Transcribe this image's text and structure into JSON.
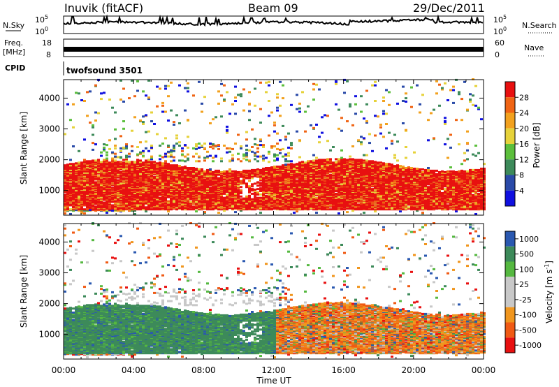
{
  "header": {
    "station": "Inuvik (fitACF)",
    "beam": "Beam 09",
    "date": "29/Dec/2011"
  },
  "strip_panels": {
    "nsky_label": "N.Sky",
    "nsky_ticks": [
      "10^5",
      "10^0"
    ],
    "nsearch_label": "N.Search",
    "nsearch_ticks": [
      "10^5",
      "10^0"
    ],
    "freq_label_line1": "Freq.",
    "freq_label_line2": "[MHz]",
    "freq_ticks": [
      "18",
      "8"
    ],
    "nave_label": "Nave",
    "nave_ticks": [
      "60",
      "0"
    ],
    "cpid_label": "CPID",
    "cpid_value": "twofsound 3501"
  },
  "colors": {
    "power": [
      "#1010e0",
      "#2a4aa8",
      "#3d8a5a",
      "#5cbf3c",
      "#e6d23a",
      "#f2a11e",
      "#f06414",
      "#e81010"
    ],
    "velocity": [
      "#e81010",
      "#f05a14",
      "#f0961e",
      "#c8c8c8",
      "#c8c8c8",
      "#55b840",
      "#3d8a5a",
      "#2a58b0"
    ],
    "axis": "#000000"
  },
  "chart_data": [
    {
      "type": "heatmap",
      "name": "power",
      "xlabel": "",
      "ylabel": "Slant Range [km]",
      "y_ticks": [
        "1000",
        "2000",
        "3000",
        "4000"
      ],
      "ylim": [
        200,
        4600
      ],
      "xlim": [
        0,
        24
      ],
      "colorbar_label": "Power [dB]",
      "colorbar_ticks": [
        "4",
        "8",
        "12",
        "16",
        "20",
        "24",
        "28"
      ],
      "colorbar_range": [
        0,
        30
      ],
      "dominant_band_km": [
        500,
        1500
      ],
      "dominant_value": 28
    },
    {
      "type": "heatmap",
      "name": "velocity",
      "xlabel": "Time UT",
      "ylabel": "Slant Range [km]",
      "y_ticks": [
        "1000",
        "2000",
        "3000",
        "4000"
      ],
      "ylim": [
        200,
        4600
      ],
      "xlim": [
        0,
        24
      ],
      "x_ticks": [
        "00:00",
        "04:00",
        "08:00",
        "12:00",
        "16:00",
        "20:00",
        "00:00"
      ],
      "colorbar_label": "Velocity [m s^-1]",
      "colorbar_ticks": [
        "1000",
        "500",
        "100",
        "25",
        "-25",
        "-100",
        "-500",
        "-1000"
      ],
      "dominant_band_km": [
        500,
        1500
      ]
    }
  ]
}
